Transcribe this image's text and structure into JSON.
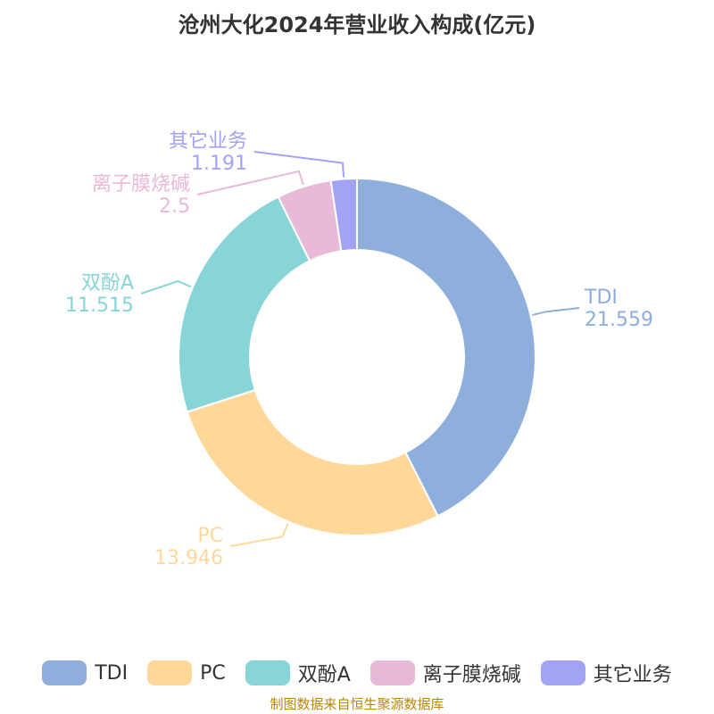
{
  "chart_data": {
    "type": "pie",
    "donut": true,
    "title": "沧州大化2024年营业收入构成(亿元)",
    "categories": [
      "TDI",
      "PC",
      "双酚A",
      "离子膜烧碱",
      "其它业务"
    ],
    "values": [
      21.559,
      13.946,
      11.515,
      2.5,
      1.191
    ],
    "colors": [
      "#8eaedb",
      "#ffd899",
      "#87d5d6",
      "#e8b9d9",
      "#a3a3f5"
    ],
    "legend_position": "bottom"
  },
  "source": "制图数据来自恒生聚源数据库"
}
